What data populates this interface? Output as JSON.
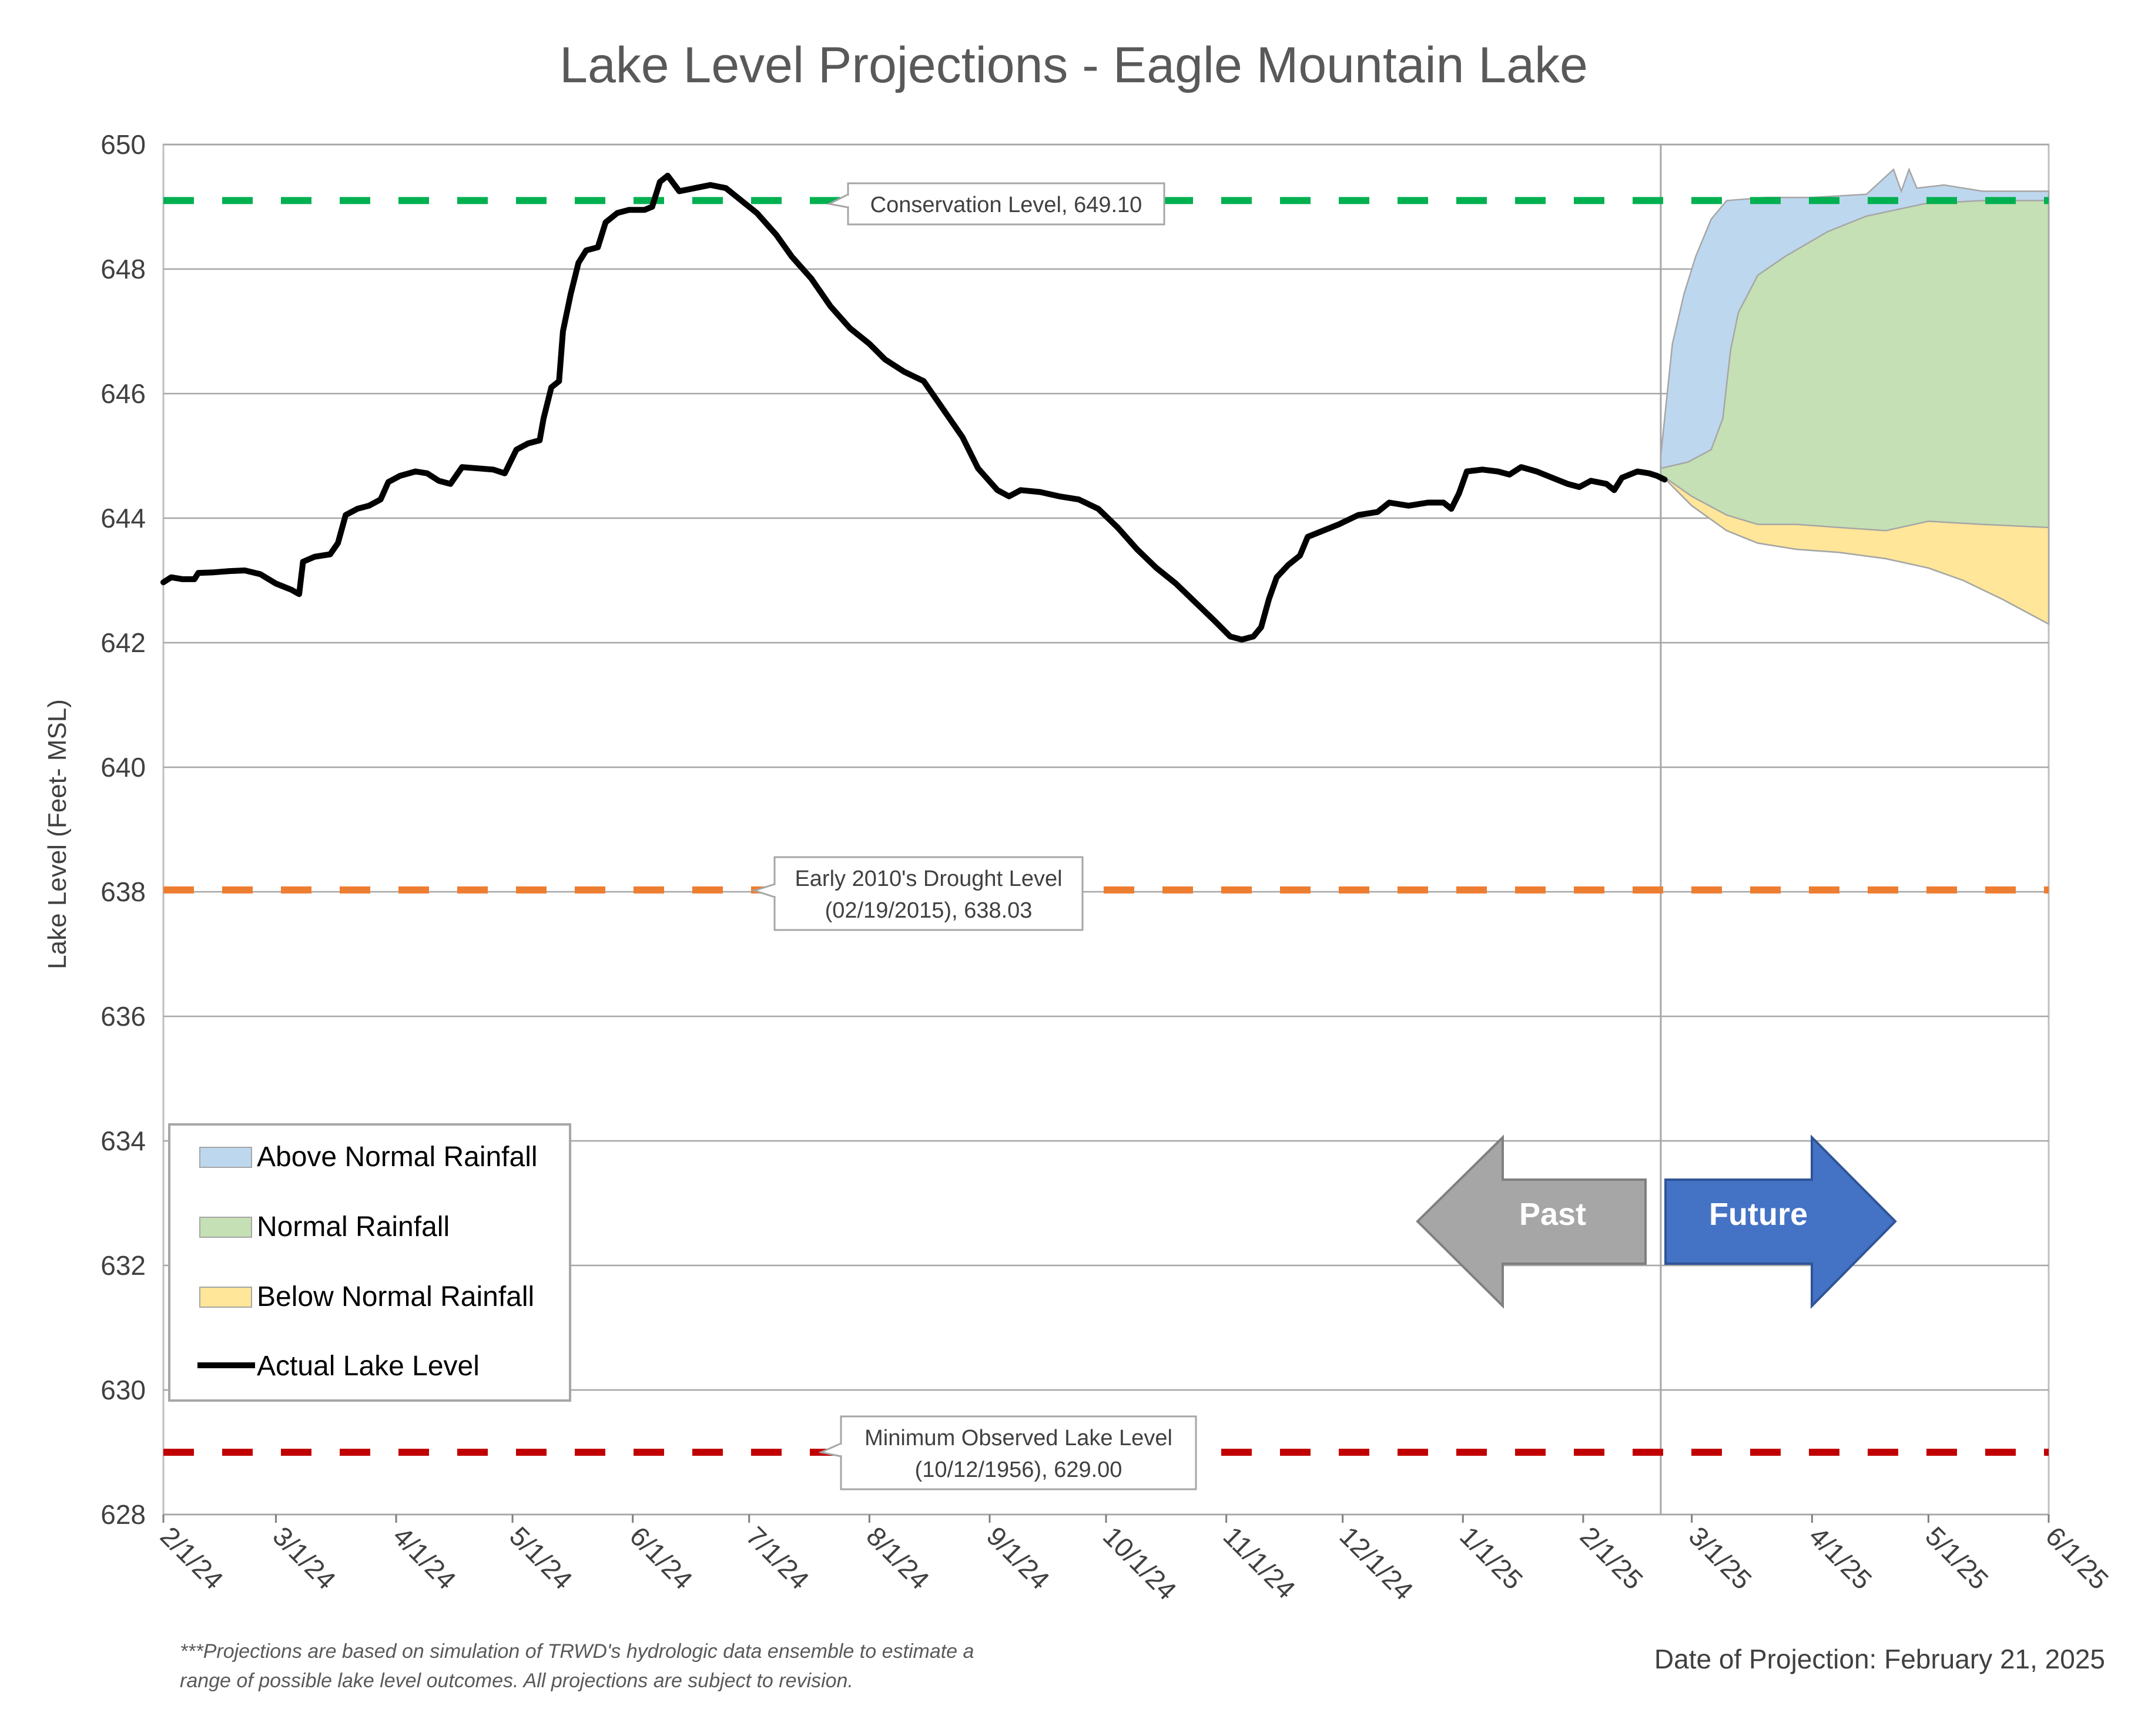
{
  "chart_data": {
    "type": "line",
    "title": "Lake Level Projections - Eagle Mountain Lake",
    "ylabel": "Lake Level (Feet- MSL)",
    "ylim": [
      628,
      650
    ],
    "yticks": [
      628,
      630,
      632,
      634,
      636,
      638,
      640,
      642,
      644,
      646,
      648,
      650
    ],
    "xlim": [
      "2024-02-01",
      "2025-06-01"
    ],
    "xticks": [
      {
        "date": "2024-02-01",
        "label": "2/1/24"
      },
      {
        "date": "2024-03-01",
        "label": "3/1/24"
      },
      {
        "date": "2024-04-01",
        "label": "4/1/24"
      },
      {
        "date": "2024-05-01",
        "label": "5/1/24"
      },
      {
        "date": "2024-06-01",
        "label": "6/1/24"
      },
      {
        "date": "2024-07-01",
        "label": "7/1/24"
      },
      {
        "date": "2024-08-01",
        "label": "8/1/24"
      },
      {
        "date": "2024-09-01",
        "label": "9/1/24"
      },
      {
        "date": "2024-10-01",
        "label": "10/1/24"
      },
      {
        "date": "2024-11-01",
        "label": "11/1/24"
      },
      {
        "date": "2024-12-01",
        "label": "12/1/24"
      },
      {
        "date": "2025-01-01",
        "label": "1/1/25"
      },
      {
        "date": "2025-02-01",
        "label": "2/1/25"
      },
      {
        "date": "2025-03-01",
        "label": "3/1/25"
      },
      {
        "date": "2025-04-01",
        "label": "4/1/25"
      },
      {
        "date": "2025-05-01",
        "label": "5/1/25"
      },
      {
        "date": "2025-06-01",
        "label": "6/1/25"
      }
    ],
    "grid": true,
    "legend_position": "bottom-left",
    "projection_date": "2025-02-21",
    "reference_lines": [
      {
        "name": "conservation",
        "value": 649.1,
        "color": "#00b050",
        "label_lines": [
          "Conservation Level, 649.10"
        ]
      },
      {
        "name": "drought",
        "value": 638.03,
        "color": "#ed7d31",
        "label_lines": [
          "Early 2010's Drought Level",
          "(02/19/2015), 638.03"
        ]
      },
      {
        "name": "minimum",
        "value": 629.0,
        "color": "#c00000",
        "label_lines": [
          "Minimum Observed Lake Level",
          "(10/12/1956), 629.00"
        ]
      }
    ],
    "series": [
      {
        "name": "Actual Lake Level",
        "color": "#000000",
        "points": [
          [
            "2024-02-01",
            642.97
          ],
          [
            "2024-02-03",
            643.05
          ],
          [
            "2024-02-06",
            643.02
          ],
          [
            "2024-02-09",
            643.02
          ],
          [
            "2024-02-10",
            643.12
          ],
          [
            "2024-02-14",
            643.13
          ],
          [
            "2024-02-18",
            643.15
          ],
          [
            "2024-02-22",
            643.16
          ],
          [
            "2024-02-26",
            643.1
          ],
          [
            "2024-03-01",
            642.95
          ],
          [
            "2024-03-05",
            642.85
          ],
          [
            "2024-03-07",
            642.78
          ],
          [
            "2024-03-08",
            643.3
          ],
          [
            "2024-03-11",
            643.38
          ],
          [
            "2024-03-15",
            643.42
          ],
          [
            "2024-03-17",
            643.6
          ],
          [
            "2024-03-19",
            644.05
          ],
          [
            "2024-03-22",
            644.15
          ],
          [
            "2024-03-25",
            644.2
          ],
          [
            "2024-03-28",
            644.3
          ],
          [
            "2024-03-30",
            644.58
          ],
          [
            "2024-04-02",
            644.68
          ],
          [
            "2024-04-06",
            644.75
          ],
          [
            "2024-04-09",
            644.72
          ],
          [
            "2024-04-12",
            644.6
          ],
          [
            "2024-04-15",
            644.55
          ],
          [
            "2024-04-18",
            644.82
          ],
          [
            "2024-04-22",
            644.8
          ],
          [
            "2024-04-26",
            644.78
          ],
          [
            "2024-04-29",
            644.72
          ],
          [
            "2024-05-02",
            645.1
          ],
          [
            "2024-05-05",
            645.2
          ],
          [
            "2024-05-08",
            645.25
          ],
          [
            "2024-05-09",
            645.6
          ],
          [
            "2024-05-11",
            646.1
          ],
          [
            "2024-05-13",
            646.2
          ],
          [
            "2024-05-14",
            647.0
          ],
          [
            "2024-05-16",
            647.6
          ],
          [
            "2024-05-18",
            648.1
          ],
          [
            "2024-05-20",
            648.3
          ],
          [
            "2024-05-23",
            648.35
          ],
          [
            "2024-05-25",
            648.75
          ],
          [
            "2024-05-28",
            648.9
          ],
          [
            "2024-05-31",
            648.95
          ],
          [
            "2024-06-04",
            648.95
          ],
          [
            "2024-06-06",
            649.0
          ],
          [
            "2024-06-08",
            649.4
          ],
          [
            "2024-06-10",
            649.5
          ],
          [
            "2024-06-13",
            649.25
          ],
          [
            "2024-06-17",
            649.3
          ],
          [
            "2024-06-21",
            649.35
          ],
          [
            "2024-06-25",
            649.3
          ],
          [
            "2024-06-29",
            649.1
          ],
          [
            "2024-07-03",
            648.9
          ],
          [
            "2024-07-08",
            648.55
          ],
          [
            "2024-07-12",
            648.2
          ],
          [
            "2024-07-17",
            647.85
          ],
          [
            "2024-07-22",
            647.4
          ],
          [
            "2024-07-27",
            647.05
          ],
          [
            "2024-08-01",
            646.8
          ],
          [
            "2024-08-05",
            646.55
          ],
          [
            "2024-08-10",
            646.35
          ],
          [
            "2024-08-15",
            646.2
          ],
          [
            "2024-08-20",
            645.75
          ],
          [
            "2024-08-25",
            645.3
          ],
          [
            "2024-08-29",
            644.8
          ],
          [
            "2024-09-03",
            644.45
          ],
          [
            "2024-09-06",
            644.35
          ],
          [
            "2024-09-09",
            644.45
          ],
          [
            "2024-09-14",
            644.42
          ],
          [
            "2024-09-19",
            644.35
          ],
          [
            "2024-09-24",
            644.3
          ],
          [
            "2024-09-29",
            644.15
          ],
          [
            "2024-10-04",
            643.85
          ],
          [
            "2024-10-09",
            643.5
          ],
          [
            "2024-10-14",
            643.2
          ],
          [
            "2024-10-19",
            642.95
          ],
          [
            "2024-10-24",
            642.65
          ],
          [
            "2024-10-29",
            642.35
          ],
          [
            "2024-11-02",
            642.1
          ],
          [
            "2024-11-05",
            642.05
          ],
          [
            "2024-11-08",
            642.1
          ],
          [
            "2024-11-10",
            642.25
          ],
          [
            "2024-11-12",
            642.7
          ],
          [
            "2024-11-14",
            643.05
          ],
          [
            "2024-11-17",
            643.25
          ],
          [
            "2024-11-20",
            643.4
          ],
          [
            "2024-11-22",
            643.7
          ],
          [
            "2024-11-26",
            643.8
          ],
          [
            "2024-11-30",
            643.9
          ],
          [
            "2024-12-05",
            644.05
          ],
          [
            "2024-12-10",
            644.1
          ],
          [
            "2024-12-13",
            644.25
          ],
          [
            "2024-12-18",
            644.2
          ],
          [
            "2024-12-23",
            644.25
          ],
          [
            "2024-12-27",
            644.25
          ],
          [
            "2024-12-29",
            644.15
          ],
          [
            "2024-12-31",
            644.4
          ],
          [
            "2025-01-02",
            644.75
          ],
          [
            "2025-01-06",
            644.78
          ],
          [
            "2025-01-10",
            644.75
          ],
          [
            "2025-01-13",
            644.7
          ],
          [
            "2025-01-16",
            644.82
          ],
          [
            "2025-01-20",
            644.75
          ],
          [
            "2025-01-24",
            644.65
          ],
          [
            "2025-01-28",
            644.55
          ],
          [
            "2025-01-31",
            644.5
          ],
          [
            "2025-02-03",
            644.6
          ],
          [
            "2025-02-07",
            644.55
          ],
          [
            "2025-02-09",
            644.45
          ],
          [
            "2025-02-11",
            644.65
          ],
          [
            "2025-02-15",
            644.75
          ],
          [
            "2025-02-18",
            644.72
          ],
          [
            "2025-02-20",
            644.68
          ],
          [
            "2025-02-21",
            644.65
          ],
          [
            "2025-02-22",
            644.62
          ]
        ]
      },
      {
        "name": "Above Normal Rainfall",
        "color": "#bdd7ee",
        "upper": [
          [
            "2025-02-21",
            645.0
          ],
          [
            "2025-02-24",
            646.8
          ],
          [
            "2025-02-27",
            647.6
          ],
          [
            "2025-03-02",
            648.2
          ],
          [
            "2025-03-06",
            648.8
          ],
          [
            "2025-03-10",
            649.1
          ],
          [
            "2025-03-20",
            649.15
          ],
          [
            "2025-04-01",
            649.15
          ],
          [
            "2025-04-15",
            649.2
          ],
          [
            "2025-04-22",
            649.6
          ],
          [
            "2025-04-24",
            649.25
          ],
          [
            "2025-04-26",
            649.6
          ],
          [
            "2025-04-28",
            649.3
          ],
          [
            "2025-05-05",
            649.35
          ],
          [
            "2025-05-15",
            649.25
          ],
          [
            "2025-06-01",
            649.25
          ]
        ]
      },
      {
        "name": "Normal Rainfall",
        "color": "#c5e0b4",
        "upper": [
          [
            "2025-02-21",
            644.8
          ],
          [
            "2025-02-28",
            644.9
          ],
          [
            "2025-03-06",
            645.1
          ],
          [
            "2025-03-09",
            645.6
          ],
          [
            "2025-03-11",
            646.7
          ],
          [
            "2025-03-13",
            647.3
          ],
          [
            "2025-03-18",
            647.9
          ],
          [
            "2025-03-25",
            648.2
          ],
          [
            "2025-04-05",
            648.6
          ],
          [
            "2025-04-15",
            648.85
          ],
          [
            "2025-04-30",
            649.05
          ],
          [
            "2025-05-15",
            649.1
          ],
          [
            "2025-06-01",
            649.1
          ]
        ]
      },
      {
        "name": "Below Normal Rainfall",
        "color": "#ffe699",
        "upper": [
          [
            "2025-02-21",
            644.7
          ],
          [
            "2025-03-01",
            644.35
          ],
          [
            "2025-03-10",
            644.05
          ],
          [
            "2025-03-18",
            643.9
          ],
          [
            "2025-03-28",
            643.9
          ],
          [
            "2025-04-08",
            643.85
          ],
          [
            "2025-04-20",
            643.8
          ],
          [
            "2025-05-01",
            643.95
          ],
          [
            "2025-05-15",
            643.9
          ],
          [
            "2025-06-01",
            643.85
          ]
        ],
        "lower": [
          [
            "2025-02-21",
            644.7
          ],
          [
            "2025-03-01",
            644.2
          ],
          [
            "2025-03-10",
            643.8
          ],
          [
            "2025-03-18",
            643.6
          ],
          [
            "2025-03-28",
            643.5
          ],
          [
            "2025-04-08",
            643.45
          ],
          [
            "2025-04-20",
            643.35
          ],
          [
            "2025-05-01",
            643.2
          ],
          [
            "2025-05-10",
            643.0
          ],
          [
            "2025-05-20",
            642.7
          ],
          [
            "2025-06-01",
            642.3
          ]
        ]
      }
    ],
    "legend_entries": [
      "Above Normal Rainfall",
      "Normal Rainfall",
      "Below Normal Rainfall",
      "Actual Lake Level"
    ],
    "arrows": {
      "past": {
        "label": "Past",
        "color": "#a6a6a6"
      },
      "future": {
        "label": "Future",
        "color": "#4472c4"
      }
    },
    "footnote": [
      "***Projections are based on simulation of TRWD's hydrologic data ensemble to estimate a",
      "range of possible lake level outcomes.  All projections are subject to revision."
    ],
    "date_of_projection_text": "Date of Projection: February 21, 2025"
  }
}
